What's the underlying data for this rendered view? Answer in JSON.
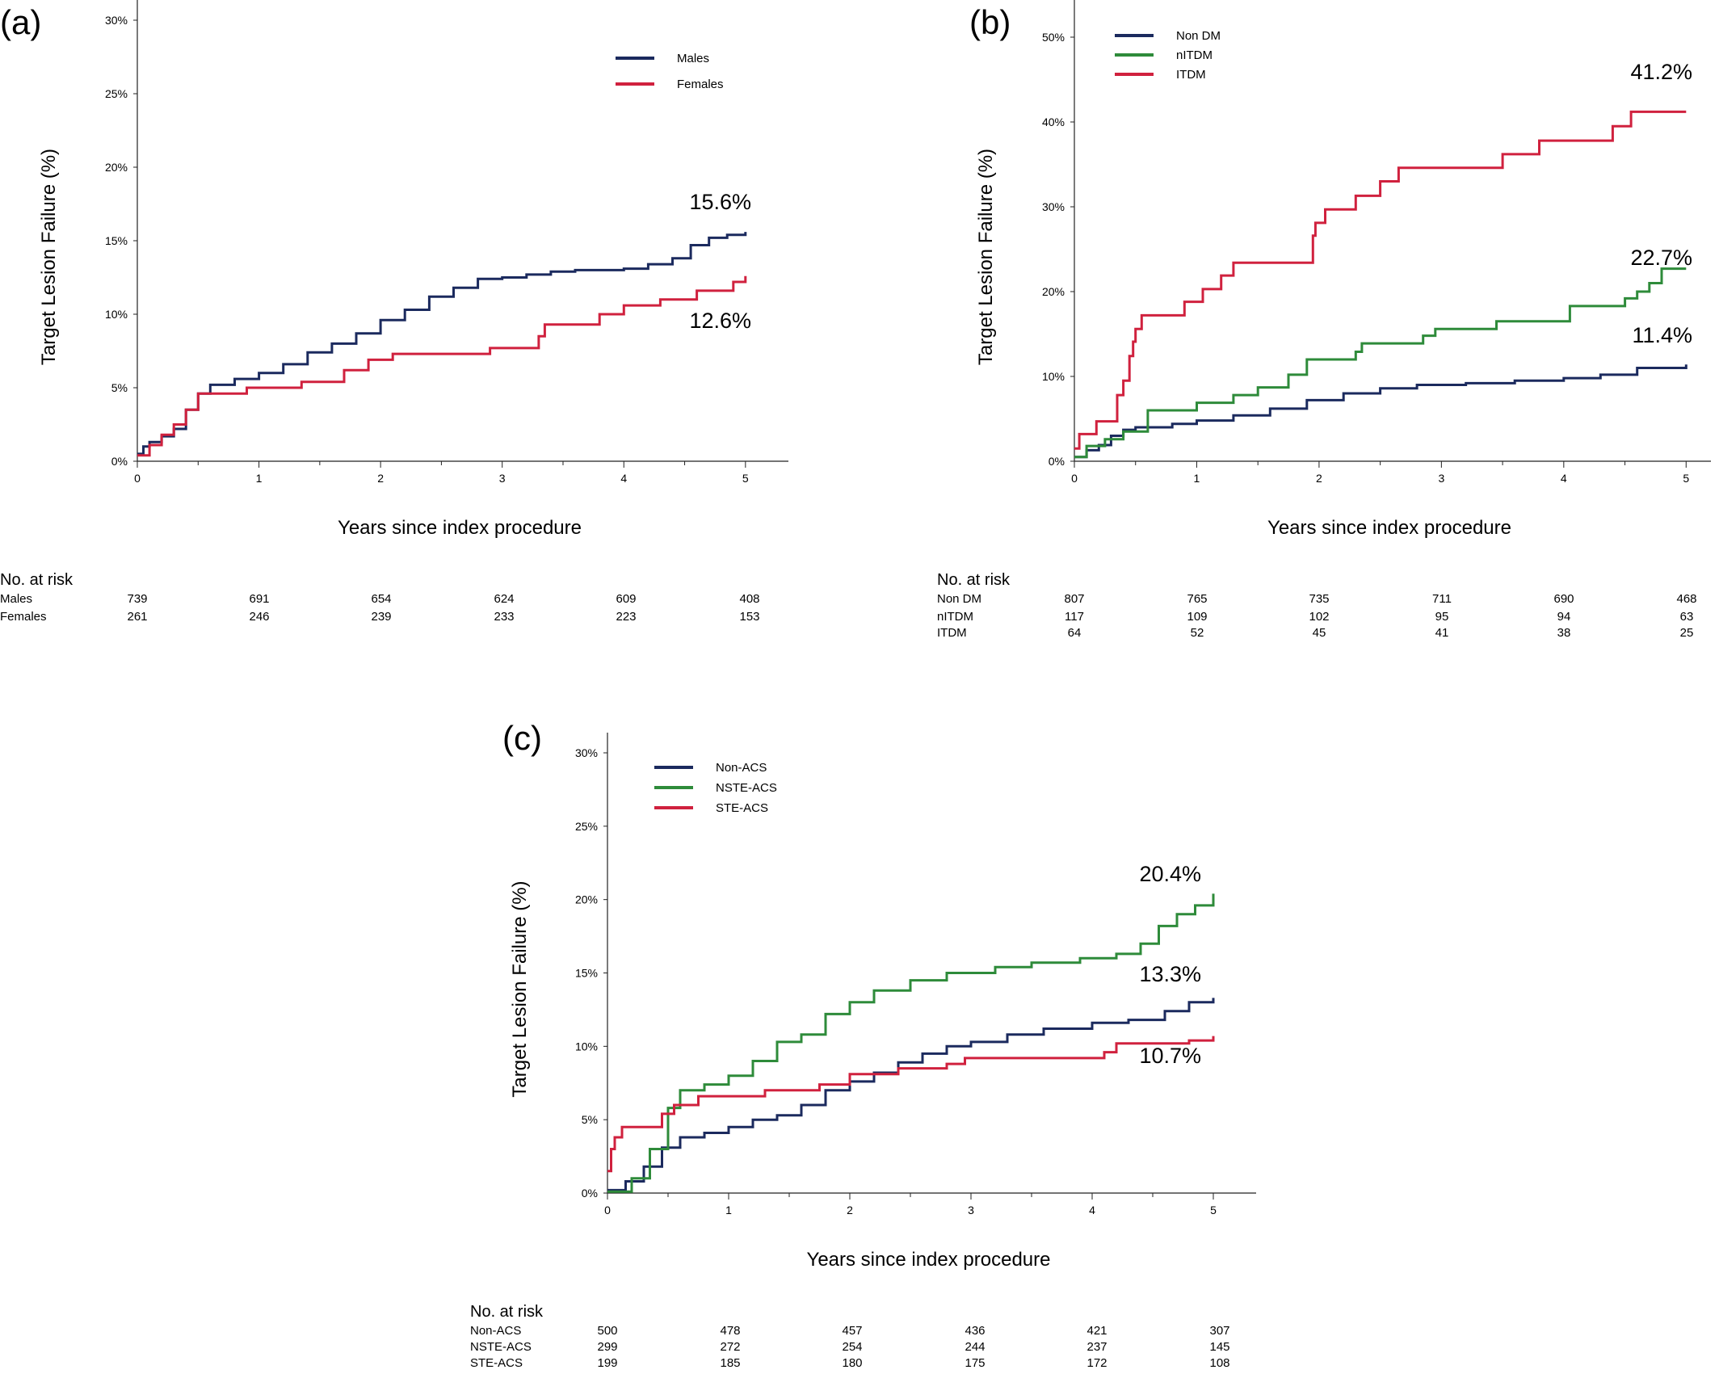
{
  "chart_data": [
    {
      "type": "line",
      "panel_label": "(a)",
      "xlabel": "Years since index procedure",
      "ylabel": "Target Lesion Failure (%)",
      "xlim": [
        0,
        5.3
      ],
      "ylim": [
        0,
        30
      ],
      "x_ticks": [
        "0",
        "1",
        "2",
        "3",
        "4",
        "5"
      ],
      "y_ticks": [
        "0%",
        "5%",
        "10%",
        "15%",
        "20%",
        "25%",
        "30%"
      ],
      "y_tick_values": [
        0,
        5,
        10,
        15,
        20,
        25,
        30
      ],
      "legend_position": "top-right",
      "series": [
        {
          "name": "Males",
          "color": "#1b2a5e",
          "end_label": "15.6%",
          "points": [
            [
              0,
              0.5
            ],
            [
              0.05,
              1.0
            ],
            [
              0.1,
              1.3
            ],
            [
              0.2,
              1.7
            ],
            [
              0.3,
              2.2
            ],
            [
              0.4,
              3.5
            ],
            [
              0.5,
              4.6
            ],
            [
              0.6,
              5.2
            ],
            [
              0.8,
              5.6
            ],
            [
              1,
              6.0
            ],
            [
              1.2,
              6.6
            ],
            [
              1.4,
              7.4
            ],
            [
              1.6,
              8.0
            ],
            [
              1.8,
              8.7
            ],
            [
              2,
              9.6
            ],
            [
              2.2,
              10.3
            ],
            [
              2.4,
              11.2
            ],
            [
              2.6,
              11.8
            ],
            [
              2.8,
              12.4
            ],
            [
              3,
              12.5
            ],
            [
              3.2,
              12.7
            ],
            [
              3.4,
              12.9
            ],
            [
              3.6,
              13.0
            ],
            [
              3.8,
              13.0
            ],
            [
              4,
              13.1
            ],
            [
              4.2,
              13.4
            ],
            [
              4.4,
              13.8
            ],
            [
              4.55,
              14.7
            ],
            [
              4.7,
              15.2
            ],
            [
              4.85,
              15.4
            ],
            [
              5,
              15.6
            ]
          ]
        },
        {
          "name": "Females",
          "color": "#d0213e",
          "end_label": "12.6%",
          "points": [
            [
              0,
              0.4
            ],
            [
              0.1,
              1.1
            ],
            [
              0.2,
              1.8
            ],
            [
              0.3,
              2.5
            ],
            [
              0.4,
              3.5
            ],
            [
              0.5,
              4.6
            ],
            [
              0.9,
              5.0
            ],
            [
              1.35,
              5.4
            ],
            [
              1.7,
              6.2
            ],
            [
              1.9,
              6.9
            ],
            [
              2.1,
              7.3
            ],
            [
              2.9,
              7.7
            ],
            [
              3.3,
              8.5
            ],
            [
              3.35,
              9.3
            ],
            [
              3.8,
              10.0
            ],
            [
              4,
              10.6
            ],
            [
              4.3,
              11.0
            ],
            [
              4.6,
              11.6
            ],
            [
              4.9,
              12.2
            ],
            [
              5,
              12.6
            ]
          ]
        }
      ],
      "risk_table": {
        "title": "No. at risk",
        "rows": [
          {
            "label": "Males",
            "values": [
              "739",
              "691",
              "654",
              "624",
              "609",
              "408"
            ]
          },
          {
            "label": "Females",
            "values": [
              "261",
              "246",
              "239",
              "233",
              "223",
              "153"
            ]
          }
        ]
      }
    },
    {
      "type": "line",
      "panel_label": "(b)",
      "xlabel": "Years since index procedure",
      "ylabel": "Target Lesion Failure (%)",
      "xlim": [
        0,
        5.15
      ],
      "ylim": [
        0,
        52
      ],
      "x_ticks": [
        "0",
        "1",
        "2",
        "3",
        "4",
        "5"
      ],
      "y_ticks": [
        "0%",
        "10%",
        "20%",
        "30%",
        "40%",
        "50%"
      ],
      "y_tick_values": [
        0,
        10,
        20,
        30,
        40,
        50
      ],
      "legend_position": "top-left",
      "series": [
        {
          "name": "Non DM",
          "color": "#1b2a5e",
          "end_label": "11.4%",
          "points": [
            [
              0,
              0.5
            ],
            [
              0.1,
              1.3
            ],
            [
              0.2,
              1.9
            ],
            [
              0.3,
              3.0
            ],
            [
              0.4,
              3.7
            ],
            [
              0.5,
              4.0
            ],
            [
              0.8,
              4.4
            ],
            [
              1,
              4.8
            ],
            [
              1.3,
              5.4
            ],
            [
              1.6,
              6.2
            ],
            [
              1.9,
              7.2
            ],
            [
              2.2,
              8.0
            ],
            [
              2.5,
              8.6
            ],
            [
              2.8,
              9.0
            ],
            [
              3.2,
              9.2
            ],
            [
              3.6,
              9.5
            ],
            [
              4,
              9.8
            ],
            [
              4.3,
              10.2
            ],
            [
              4.6,
              11.0
            ],
            [
              5,
              11.4
            ]
          ]
        },
        {
          "name": "nITDM",
          "color": "#2e8b3a",
          "end_label": "22.7%",
          "points": [
            [
              0,
              0.5
            ],
            [
              0.1,
              1.8
            ],
            [
              0.25,
              2.6
            ],
            [
              0.4,
              3.5
            ],
            [
              0.6,
              6.0
            ],
            [
              1,
              6.9
            ],
            [
              1.3,
              7.8
            ],
            [
              1.5,
              8.7
            ],
            [
              1.75,
              10.2
            ],
            [
              1.9,
              12.0
            ],
            [
              2.3,
              12.9
            ],
            [
              2.35,
              13.9
            ],
            [
              2.85,
              14.8
            ],
            [
              2.95,
              15.6
            ],
            [
              3.45,
              16.5
            ],
            [
              4.05,
              18.3
            ],
            [
              4.5,
              19.2
            ],
            [
              4.6,
              20.0
            ],
            [
              4.7,
              21.0
            ],
            [
              4.8,
              22.7
            ],
            [
              5,
              22.7
            ]
          ]
        },
        {
          "name": "ITDM",
          "color": "#d0213e",
          "end_label": "41.2%",
          "points": [
            [
              0,
              1.5
            ],
            [
              0.04,
              3.2
            ],
            [
              0.18,
              4.7
            ],
            [
              0.35,
              7.8
            ],
            [
              0.4,
              9.5
            ],
            [
              0.45,
              12.4
            ],
            [
              0.48,
              14.1
            ],
            [
              0.5,
              15.6
            ],
            [
              0.55,
              17.2
            ],
            [
              0.9,
              18.8
            ],
            [
              1.05,
              20.3
            ],
            [
              1.2,
              21.9
            ],
            [
              1.3,
              23.4
            ],
            [
              1.95,
              26.6
            ],
            [
              1.97,
              28.1
            ],
            [
              2.05,
              29.7
            ],
            [
              2.3,
              31.3
            ],
            [
              2.5,
              33.0
            ],
            [
              2.65,
              34.6
            ],
            [
              3.5,
              36.2
            ],
            [
              3.8,
              37.8
            ],
            [
              4.4,
              39.5
            ],
            [
              4.55,
              41.2
            ],
            [
              5,
              41.2
            ]
          ]
        }
      ],
      "risk_table": {
        "title": "No. at risk",
        "rows": [
          {
            "label": "Non DM",
            "values": [
              "807",
              "765",
              "735",
              "711",
              "690",
              "468"
            ]
          },
          {
            "label": "nITDM",
            "values": [
              "117",
              "109",
              "102",
              "95",
              "94",
              "63"
            ]
          },
          {
            "label": "ITDM",
            "values": [
              "64",
              "52",
              "45",
              "41",
              "38",
              "25"
            ]
          }
        ]
      }
    },
    {
      "type": "line",
      "panel_label": "(c)",
      "xlabel": "Years since index procedure",
      "ylabel": "Target Lesion Failure (%)",
      "xlim": [
        0,
        5.3
      ],
      "ylim": [
        0,
        30
      ],
      "x_ticks": [
        "0",
        "1",
        "2",
        "3",
        "4",
        "5"
      ],
      "y_ticks": [
        "0%",
        "5%",
        "10%",
        "15%",
        "20%",
        "25%",
        "30%"
      ],
      "y_tick_values": [
        0,
        5,
        10,
        15,
        20,
        25,
        30
      ],
      "legend_position": "top-left",
      "series": [
        {
          "name": "Non-ACS",
          "color": "#1b2a5e",
          "end_label": "13.3%",
          "points": [
            [
              0,
              0.2
            ],
            [
              0.15,
              0.8
            ],
            [
              0.3,
              1.8
            ],
            [
              0.45,
              3.1
            ],
            [
              0.6,
              3.8
            ],
            [
              0.8,
              4.1
            ],
            [
              1,
              4.5
            ],
            [
              1.2,
              5.0
            ],
            [
              1.4,
              5.3
            ],
            [
              1.6,
              6.0
            ],
            [
              1.8,
              7.0
            ],
            [
              2,
              7.6
            ],
            [
              2.2,
              8.2
            ],
            [
              2.4,
              8.9
            ],
            [
              2.6,
              9.5
            ],
            [
              2.8,
              10.0
            ],
            [
              3,
              10.3
            ],
            [
              3.3,
              10.8
            ],
            [
              3.6,
              11.2
            ],
            [
              4,
              11.6
            ],
            [
              4.3,
              11.8
            ],
            [
              4.6,
              12.4
            ],
            [
              4.8,
              13.0
            ],
            [
              5,
              13.3
            ]
          ]
        },
        {
          "name": "NSTE-ACS",
          "color": "#2e8b3a",
          "end_label": "20.4%",
          "points": [
            [
              0,
              0.1
            ],
            [
              0.2,
              1.0
            ],
            [
              0.35,
              3.0
            ],
            [
              0.5,
              5.8
            ],
            [
              0.6,
              7.0
            ],
            [
              0.8,
              7.4
            ],
            [
              1,
              8.0
            ],
            [
              1.2,
              9.0
            ],
            [
              1.4,
              10.3
            ],
            [
              1.6,
              10.8
            ],
            [
              1.8,
              12.2
            ],
            [
              2,
              13.0
            ],
            [
              2.2,
              13.8
            ],
            [
              2.5,
              14.5
            ],
            [
              2.8,
              15.0
            ],
            [
              3.2,
              15.4
            ],
            [
              3.5,
              15.7
            ],
            [
              3.9,
              16.0
            ],
            [
              4.2,
              16.3
            ],
            [
              4.4,
              17.0
            ],
            [
              4.55,
              18.2
            ],
            [
              4.7,
              19.0
            ],
            [
              4.85,
              19.6
            ],
            [
              5,
              20.4
            ]
          ]
        },
        {
          "name": "STE-ACS",
          "color": "#d0213e",
          "end_label": "10.7%",
          "points": [
            [
              0,
              1.5
            ],
            [
              0.03,
              3.0
            ],
            [
              0.06,
              3.8
            ],
            [
              0.12,
              4.5
            ],
            [
              0.45,
              5.4
            ],
            [
              0.55,
              6.0
            ],
            [
              0.75,
              6.6
            ],
            [
              1.3,
              7.0
            ],
            [
              1.75,
              7.4
            ],
            [
              2,
              8.1
            ],
            [
              2.4,
              8.5
            ],
            [
              2.8,
              8.8
            ],
            [
              2.95,
              9.2
            ],
            [
              3.8,
              9.2
            ],
            [
              4.1,
              9.6
            ],
            [
              4.2,
              10.2
            ],
            [
              4.8,
              10.4
            ],
            [
              5,
              10.7
            ]
          ]
        }
      ],
      "risk_table": {
        "title": "No. at risk",
        "rows": [
          {
            "label": "Non-ACS",
            "values": [
              "500",
              "478",
              "457",
              "436",
              "421",
              "307"
            ]
          },
          {
            "label": "NSTE-ACS",
            "values": [
              "299",
              "272",
              "254",
              "244",
              "237",
              "145"
            ]
          },
          {
            "label": "STE-ACS",
            "values": [
              "199",
              "185",
              "180",
              "175",
              "172",
              "108"
            ]
          }
        ]
      }
    }
  ]
}
